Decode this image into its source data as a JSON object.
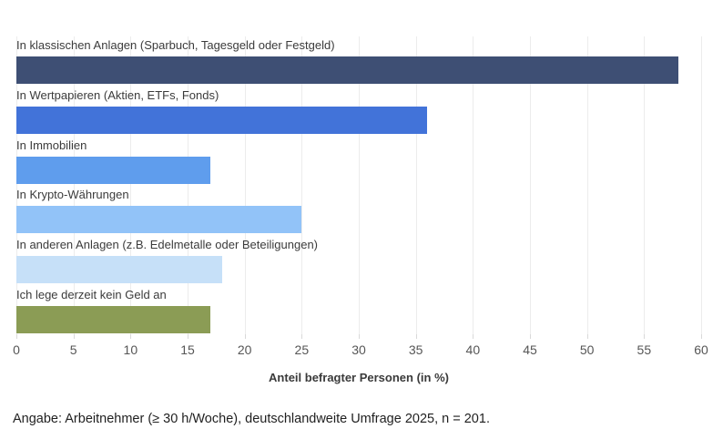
{
  "chart_data": {
    "type": "bar",
    "orientation": "horizontal",
    "categories": [
      "In klassischen Anlagen (Sparbuch, Tagesgeld oder Festgeld)",
      "In Wertpapieren (Aktien, ETFs, Fonds)",
      "In Immobilien",
      "In Krypto-Währungen",
      "In anderen Anlagen (z.B. Edelmetalle oder Beteiligungen)",
      "Ich lege derzeit kein Geld an"
    ],
    "values": [
      58,
      36,
      17,
      25,
      18,
      17
    ],
    "bar_colors": [
      "#3e4f74",
      "#4273d9",
      "#5f9ded",
      "#92c3f8",
      "#c6e0f8",
      "#8b9c55"
    ],
    "title": "",
    "xlabel": "Anteil befragter Personen (in %)",
    "ylabel": "",
    "xlim": [
      0,
      60
    ],
    "xticks": [
      0,
      5,
      10,
      15,
      20,
      25,
      30,
      35,
      40,
      45,
      50,
      55,
      60
    ],
    "grid": true,
    "gridline_color": "#ececec",
    "legend_position": "none"
  },
  "footer": {
    "note": "Angabe: Arbeitnehmer (≥ 30 h/Woche), deutschlandweite Umfrage 2025, n = 201."
  }
}
